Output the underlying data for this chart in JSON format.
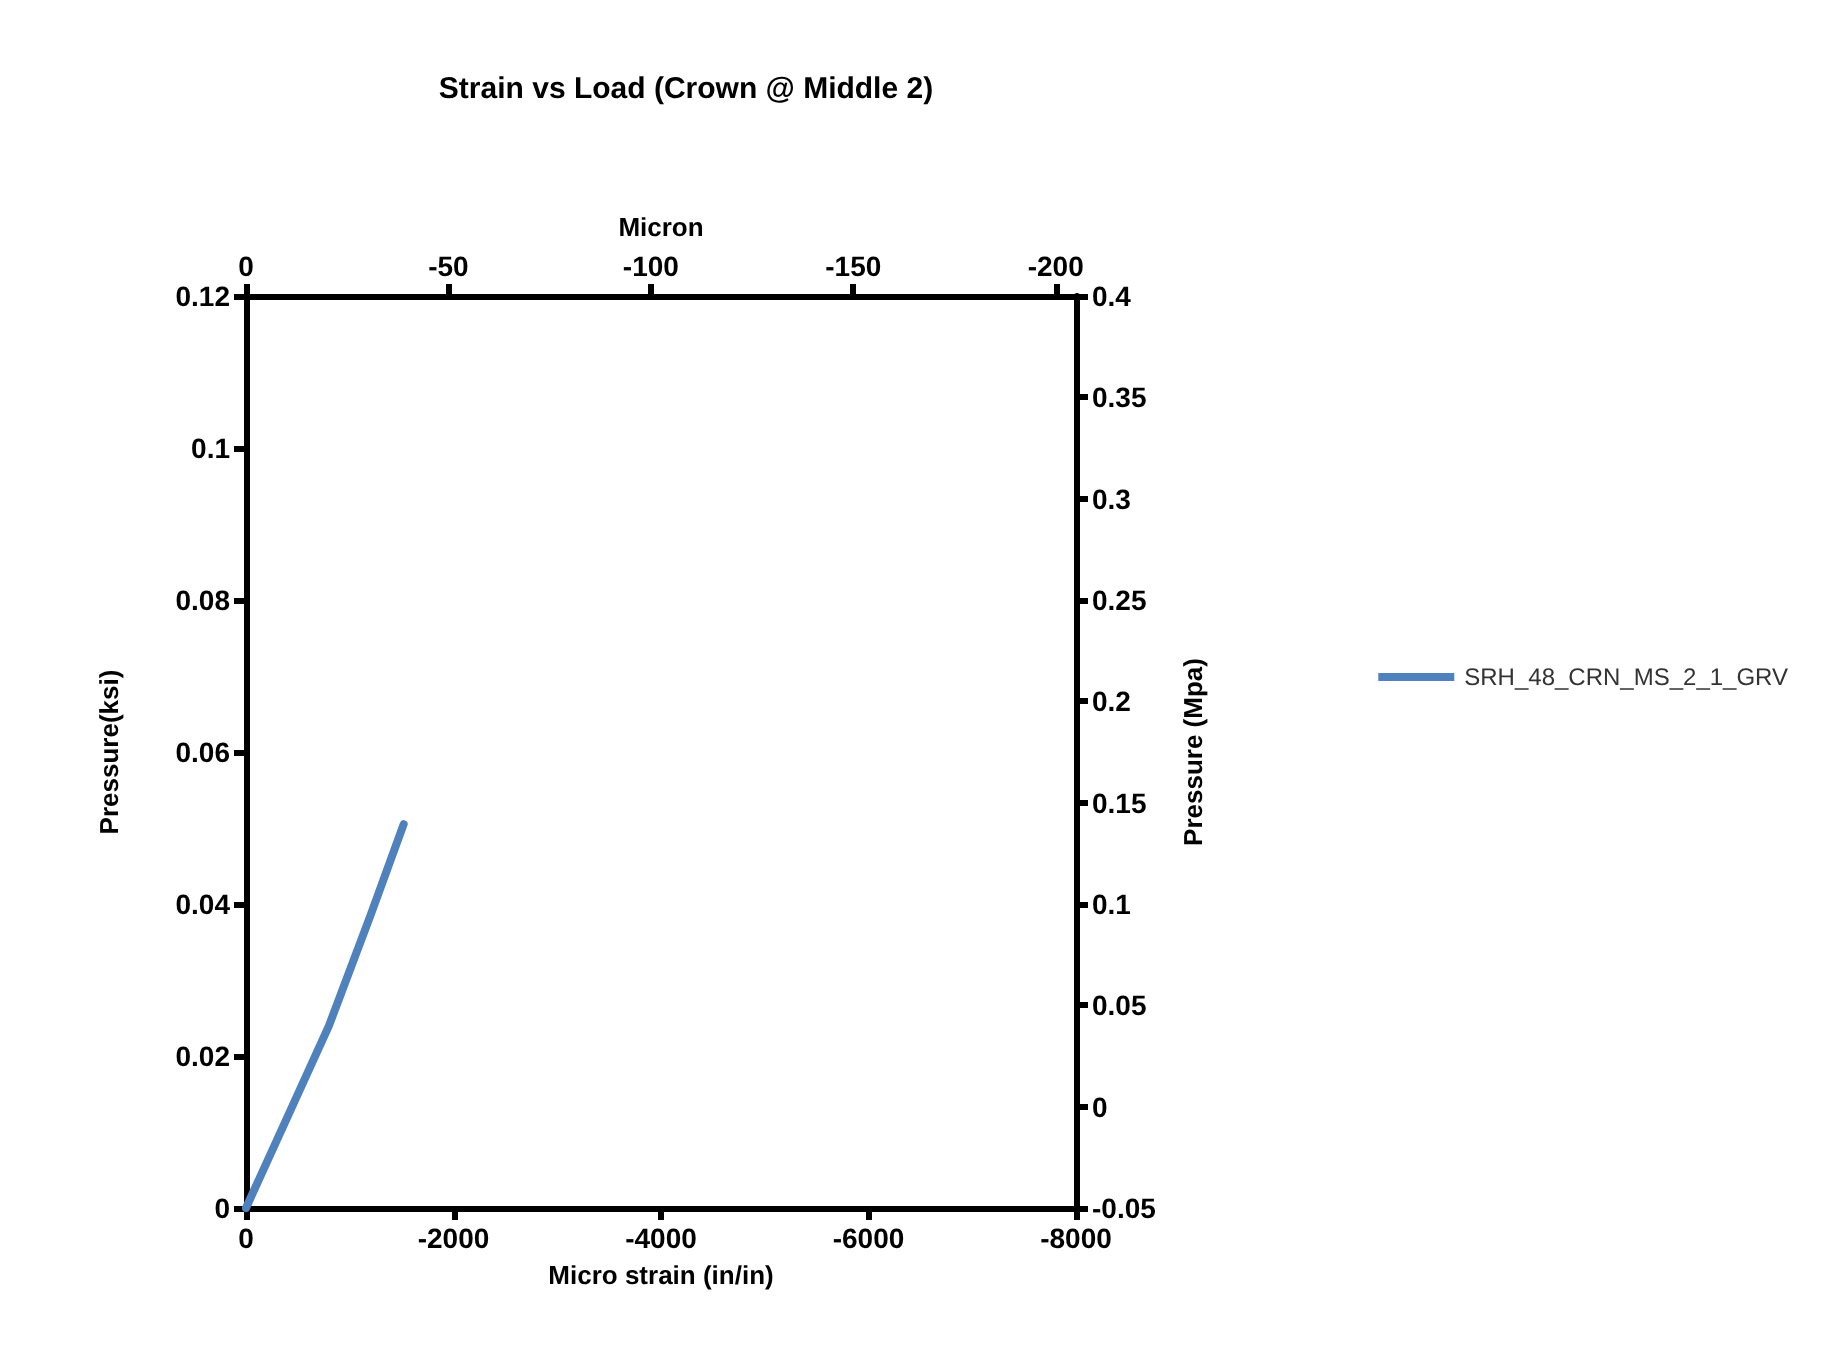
{
  "chart_data": {
    "type": "line",
    "title": "Strain vs Load (Crown @ Middle 2)",
    "xlabel": "Micro strain (in/in)",
    "ylabel": "Pressure(ksi)",
    "y2label": "Pressure (Mpa)",
    "x2label": "Micron",
    "series": [
      {
        "name": "SRH_48_CRN_MS_2_1_GRV",
        "color": "#4f81bd",
        "x": [
          0,
          -400,
          -800,
          -1200,
          -1520
        ],
        "values": [
          0,
          0.012,
          0.024,
          0.0385,
          0.0505
        ]
      }
    ],
    "xlim": [
      0,
      -8000
    ],
    "xticks": [
      0,
      -2000,
      -4000,
      -6000,
      -8000
    ],
    "x2lim": [
      0,
      -205
    ],
    "x2ticks": [
      0,
      -50,
      -100,
      -150,
      -200
    ],
    "ylim": [
      0,
      0.12
    ],
    "yticks": [
      0,
      0.02,
      0.04,
      0.06,
      0.08,
      0.1,
      0.12
    ],
    "y2lim": [
      -0.05,
      0.4
    ],
    "y2ticks": [
      -0.05,
      0,
      0.05,
      0.1,
      0.15,
      0.2,
      0.25,
      0.3,
      0.35,
      0.4
    ],
    "grid": false,
    "legend": "right",
    "marker": "none",
    "line_style": "solid"
  }
}
